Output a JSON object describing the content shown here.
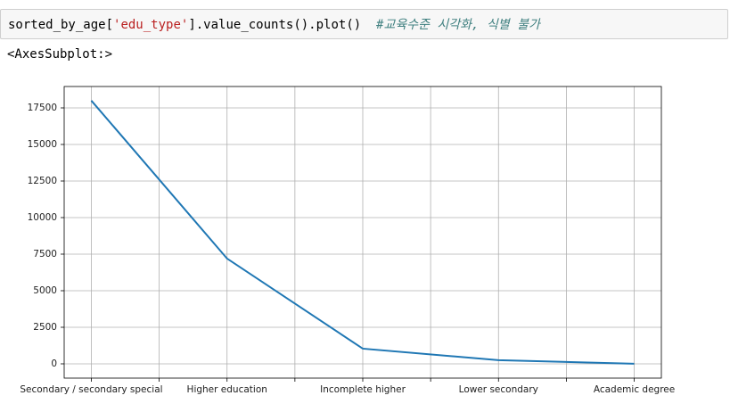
{
  "cell": {
    "code_prefix": "sorted_by_age[",
    "code_string": "'edu_type'",
    "code_suffix": "].value_counts().plot()  ",
    "comment": "#교육수준 시각화, 식별 불가"
  },
  "output": "<AxesSubplot:>",
  "chart_data": {
    "type": "line",
    "categories": [
      "Secondary / secondary special",
      "Higher education",
      "Incomplete higher",
      "Lower secondary",
      "Academic degree"
    ],
    "values": [
      18000,
      7200,
      1040,
      250,
      10
    ],
    "color": "#1f77b4",
    "xlim": [
      -0.2,
      4.2
    ],
    "xticks": [
      0,
      {
        "value": 0.5,
        "label": null
      },
      1,
      {
        "value": 1.5,
        "label": null
      },
      2,
      {
        "value": 2.5,
        "label": null
      },
      3,
      {
        "value": 3.5,
        "label": null
      },
      4
    ],
    "ylim": [
      -976,
      18963
    ],
    "yticks": [
      0,
      2500,
      5000,
      7500,
      10000,
      12500,
      15000,
      17500
    ],
    "grid": true
  }
}
